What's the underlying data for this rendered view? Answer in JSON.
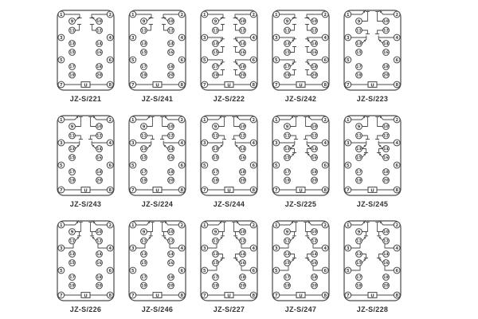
{
  "page": {
    "background": "#ffffff",
    "line_color": "#4a4a4a",
    "label_color": "#333333"
  },
  "socket": {
    "terminals": [
      "1",
      "2",
      "3",
      "4",
      "5",
      "6",
      "7",
      "8",
      "9",
      "10",
      "11",
      "12",
      "13",
      "14",
      "15",
      "16",
      "17",
      "18",
      "19",
      "20"
    ],
    "power_label": "U"
  },
  "diagrams": [
    {
      "label": "JZ-S/221",
      "contacts": [
        "corner-pair"
      ]
    },
    {
      "label": "JZ-S/241",
      "contacts": [
        "corner-pair"
      ]
    },
    {
      "label": "JZ-S/222",
      "contacts": [
        "corner-pair",
        "mid-side-pair",
        "low-side-pair"
      ]
    },
    {
      "label": "JZ-S/242",
      "contacts": [
        "corner-pair",
        "mid-side-pair",
        "low-side-pair"
      ]
    },
    {
      "label": "JZ-S/223",
      "contacts": [
        "top-edge",
        "upper-side-pair"
      ]
    },
    {
      "label": "JZ-S/243",
      "contacts": [
        "top-edge",
        "upper-side-pair"
      ]
    },
    {
      "label": "JZ-S/224",
      "contacts": [
        "top-edge",
        "upper-side-pair"
      ]
    },
    {
      "label": "JZ-S/244",
      "contacts": [
        "top-edge",
        "upper-side-pair"
      ]
    },
    {
      "label": "JZ-S/225",
      "contacts": [
        "top-edge",
        "upper-side-pair",
        "cascade-13-15"
      ]
    },
    {
      "label": "JZ-S/245",
      "contacts": [
        "top-edge",
        "upper-side-pair",
        "cascade-13-15"
      ]
    },
    {
      "label": "JZ-S/226",
      "contacts": [
        "top-edge",
        "cascade-9-11"
      ]
    },
    {
      "label": "JZ-S/246",
      "contacts": [
        "top-edge",
        "cascade-9-11"
      ]
    },
    {
      "label": "JZ-S/227",
      "contacts": [
        "top-edge",
        "cascade-9-11",
        "cascade-13-15-fed5"
      ]
    },
    {
      "label": "JZ-S/247",
      "contacts": [
        "top-edge",
        "cascade-9-11",
        "cascade-13-15-fed5"
      ]
    },
    {
      "label": "JZ-S/228",
      "contacts": [
        "top-edge",
        "cascade-9-11",
        "cascade-13-15-fed5"
      ]
    }
  ]
}
